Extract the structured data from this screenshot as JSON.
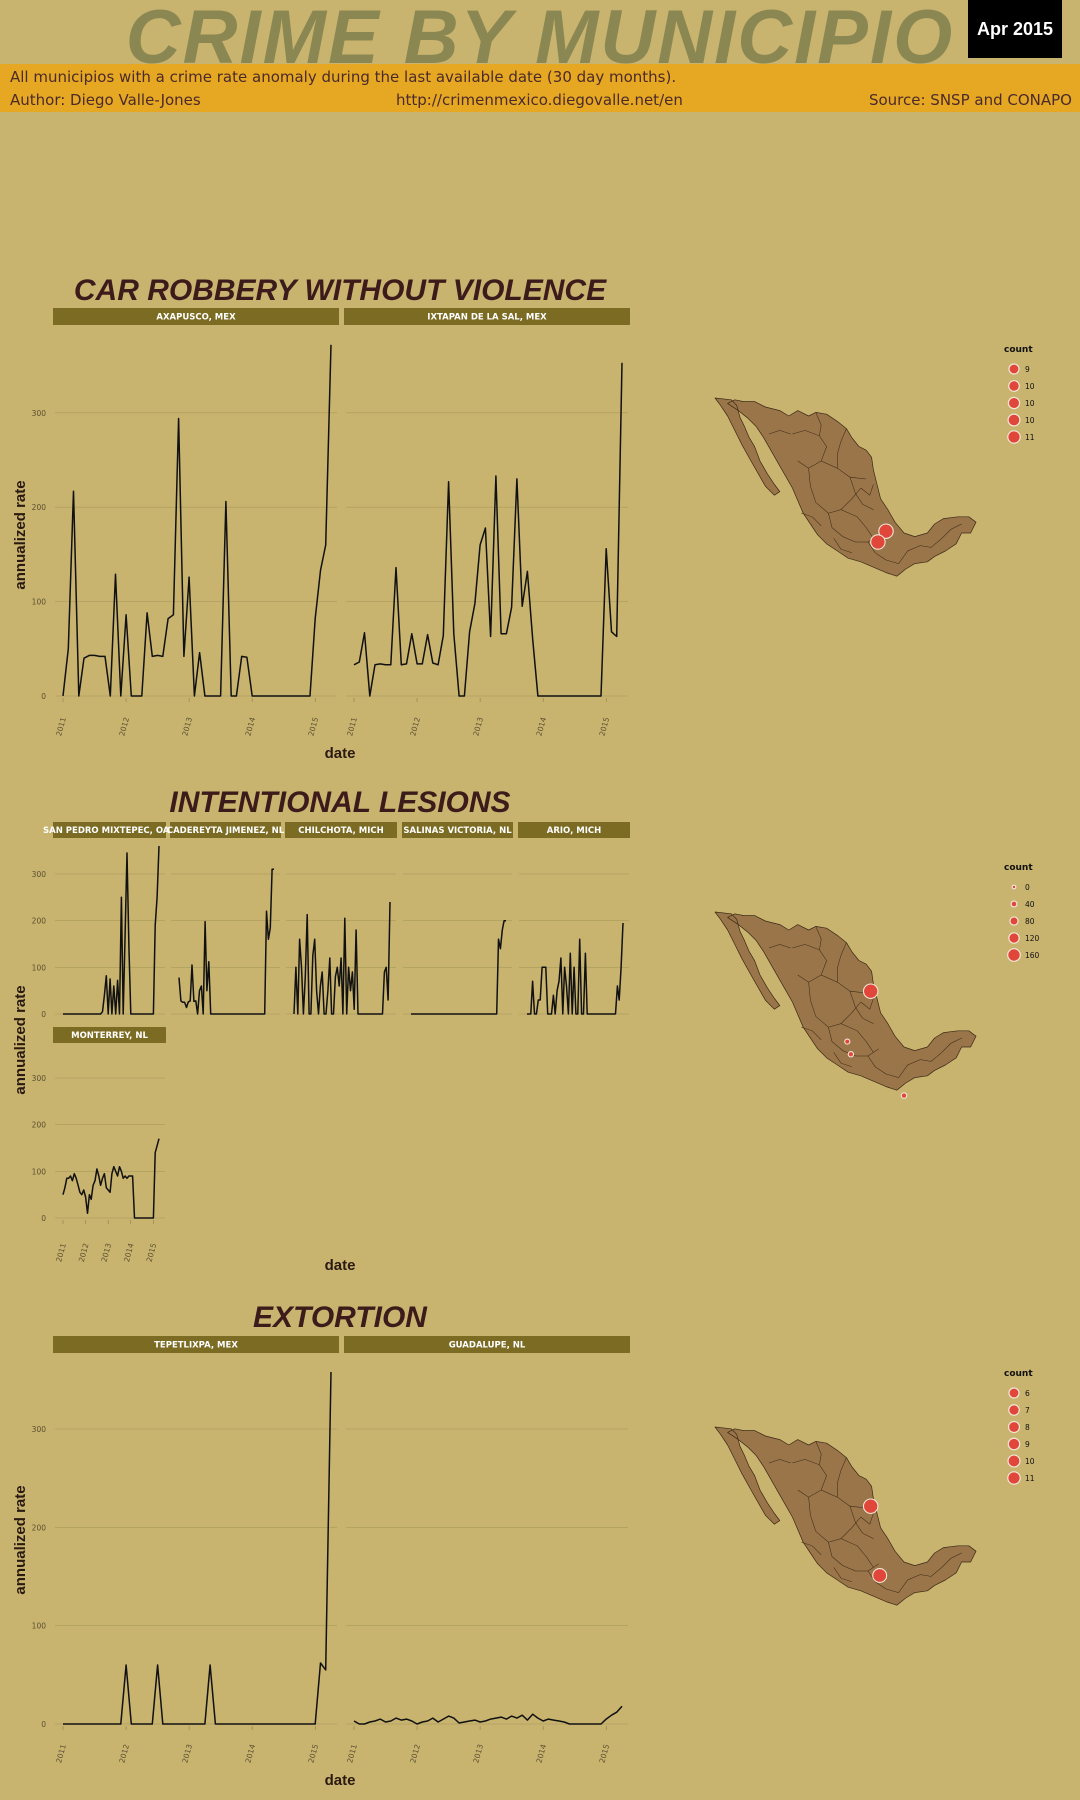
{
  "header": {
    "title": "CRIME BY MUNICIPIO",
    "date_badge": "Apr 2015",
    "subtitle": "All municipios with a crime rate anomaly during the last available date (30 day months).",
    "author": "Author: Diego Valle-Jones",
    "url": "http://crimenmexico.diegovalle.net/en",
    "source": "Source: SNSP and CONAPO"
  },
  "colors": {
    "background": "#c8b36f",
    "banner": "#e6a823",
    "title": "#8b8752",
    "strip": "#7c6b22",
    "section_title": "#3e1b1b",
    "bubble": "#e0463a",
    "map_land": "#9a7549"
  },
  "chart_data": [
    {
      "type": "line",
      "title": "CAR ROBBERY WITHOUT VIOLENCE",
      "xlabel": "date",
      "ylabel": "annualized rate",
      "x_ticks": [
        "2011",
        "2012",
        "2013",
        "2014",
        "2015"
      ],
      "y_ticks": [
        0,
        100,
        200,
        300
      ],
      "ylim": [
        0,
        375
      ],
      "x_start": "2011-01",
      "x_end": "2015-04",
      "series": [
        {
          "name": "AXAPUSCO, MEX",
          "values": [
            0,
            50,
            217,
            0,
            40,
            43,
            43,
            42,
            42,
            0,
            129,
            0,
            86,
            0,
            0,
            0,
            88,
            42,
            43,
            42,
            82,
            86,
            294,
            42,
            126,
            0,
            46,
            0,
            0,
            0,
            0,
            206,
            0,
            0,
            42,
            41,
            0,
            0,
            0,
            0,
            0,
            0,
            0,
            0,
            0,
            0,
            0,
            0,
            82,
            133,
            160,
            372
          ]
        },
        {
          "name": "IXTAPAN DE LA SAL, MEX",
          "values": [
            33,
            36,
            67,
            0,
            33,
            34,
            33,
            33,
            136,
            33,
            34,
            66,
            34,
            34,
            65,
            35,
            33,
            64,
            227,
            66,
            0,
            0,
            68,
            98,
            160,
            178,
            63,
            233,
            66,
            66,
            94,
            230,
            95,
            132,
            60,
            0,
            0,
            0,
            0,
            0,
            0,
            0,
            0,
            0,
            0,
            0,
            0,
            0,
            156,
            68,
            63,
            353
          ]
        }
      ],
      "legend": {
        "title": "count",
        "entries": [
          "9",
          "10",
          "10",
          "10",
          "11"
        ]
      },
      "map_points": [
        {
          "municipio": "AXAPUSCO, MEX",
          "count": 11
        },
        {
          "municipio": "IXTAPAN DE LA SAL, MEX",
          "count": 11
        }
      ]
    },
    {
      "type": "line",
      "title": "INTENTIONAL LESIONS",
      "xlabel": "date",
      "ylabel": "annualized rate",
      "x_ticks": [
        "2011",
        "2012",
        "2013",
        "2014",
        "2015"
      ],
      "y_ticks": [
        0,
        100,
        200,
        300
      ],
      "ylim": [
        0,
        360
      ],
      "x_start": "2011-01",
      "x_end": "2015-04",
      "series": [
        {
          "name": "SAN PEDRO MIXTEPEC, OAX",
          "values": [
            0,
            0,
            0,
            0,
            0,
            0,
            0,
            0,
            0,
            0,
            0,
            0,
            0,
            0,
            0,
            0,
            0,
            0,
            0,
            0,
            0,
            5,
            40,
            82,
            0,
            75,
            0,
            60,
            0,
            72,
            0,
            250,
            0,
            170,
            345,
            145,
            0,
            0,
            0,
            0,
            0,
            0,
            0,
            0,
            0,
            0,
            0,
            0,
            0,
            190,
            250,
            360
          ]
        },
        {
          "name": "CADEREYTA JIMENEZ, NL",
          "values": [
            78,
            28,
            25,
            25,
            14,
            26,
            28,
            105,
            27,
            28,
            0,
            50,
            60,
            0,
            198,
            50,
            112,
            0,
            0,
            0,
            0,
            0,
            0,
            0,
            0,
            0,
            0,
            0,
            0,
            0,
            0,
            0,
            0,
            0,
            0,
            0,
            0,
            0,
            0,
            0,
            0,
            0,
            0,
            0,
            0,
            0,
            0,
            220,
            160,
            185,
            310,
            310
          ]
        },
        {
          "name": "CHILCHOTA, MICH",
          "values": [
            0,
            100,
            0,
            160,
            100,
            0,
            80,
            213,
            0,
            0,
            125,
            160,
            50,
            0,
            60,
            90,
            0,
            0,
            50,
            120,
            0,
            0,
            80,
            100,
            60,
            120,
            0,
            205,
            0,
            100,
            50,
            90,
            10,
            180,
            0,
            0,
            0,
            0,
            0,
            0,
            0,
            0,
            0,
            0,
            0,
            0,
            0,
            0,
            90,
            100,
            30,
            240
          ]
        },
        {
          "name": "SALINAS VICTORIA, NL",
          "values": [
            0,
            0,
            0,
            0,
            0,
            0,
            0,
            0,
            0,
            0,
            0,
            0,
            0,
            0,
            0,
            0,
            0,
            0,
            0,
            0,
            0,
            0,
            0,
            0,
            0,
            0,
            0,
            0,
            0,
            0,
            0,
            0,
            0,
            0,
            0,
            0,
            0,
            0,
            0,
            0,
            0,
            0,
            0,
            0,
            0,
            0,
            0,
            160,
            140,
            180,
            200,
            200
          ]
        },
        {
          "name": "ARIO, MICH",
          "values": [
            0,
            0,
            0,
            70,
            0,
            0,
            30,
            30,
            100,
            100,
            100,
            0,
            0,
            0,
            40,
            0,
            50,
            70,
            120,
            0,
            100,
            60,
            0,
            130,
            0,
            100,
            0,
            0,
            160,
            0,
            0,
            130,
            0,
            0,
            0,
            0,
            0,
            0,
            0,
            0,
            0,
            0,
            0,
            0,
            0,
            0,
            0,
            0,
            60,
            30,
            100,
            195
          ]
        },
        {
          "name": "MONTERREY, NL",
          "values": [
            50,
            65,
            85,
            85,
            90,
            80,
            95,
            85,
            70,
            55,
            50,
            60,
            45,
            10,
            50,
            40,
            70,
            80,
            105,
            90,
            70,
            85,
            95,
            65,
            60,
            55,
            95,
            110,
            100,
            90,
            110,
            100,
            85,
            90,
            85,
            90,
            90,
            90,
            0,
            0,
            0,
            0,
            0,
            0,
            0,
            0,
            0,
            0,
            0,
            140,
            155,
            170
          ]
        }
      ],
      "legend": {
        "title": "count",
        "entries": [
          "0",
          "40",
          "80",
          "120",
          "160"
        ]
      },
      "map_points": [
        {
          "municipio": "MONTERREY, NL",
          "count": 160
        },
        {
          "municipio": "SAN PEDRO MIXTEPEC, OAX",
          "count": 5
        }
      ]
    },
    {
      "type": "line",
      "title": "EXTORTION",
      "xlabel": "date",
      "ylabel": "annualized rate",
      "x_ticks": [
        "2011",
        "2012",
        "2013",
        "2014",
        "2015"
      ],
      "y_ticks": [
        0,
        100,
        200,
        300
      ],
      "ylim": [
        0,
        360
      ],
      "x_start": "2011-01",
      "x_end": "2015-04",
      "series": [
        {
          "name": "TEPETLIXPA, MEX",
          "values": [
            0,
            0,
            0,
            0,
            0,
            0,
            0,
            0,
            0,
            0,
            0,
            0,
            60,
            0,
            0,
            0,
            0,
            0,
            60,
            0,
            0,
            0,
            0,
            0,
            0,
            0,
            0,
            0,
            60,
            0,
            0,
            0,
            0,
            0,
            0,
            0,
            0,
            0,
            0,
            0,
            0,
            0,
            0,
            0,
            0,
            0,
            0,
            0,
            0,
            62,
            55,
            358
          ]
        },
        {
          "name": "GUADALUPE, NL",
          "values": [
            3,
            0,
            0,
            2,
            3,
            5,
            2,
            3,
            6,
            4,
            5,
            3,
            0,
            2,
            3,
            6,
            2,
            5,
            8,
            6,
            1,
            2,
            3,
            4,
            2,
            3,
            5,
            6,
            7,
            5,
            8,
            6,
            9,
            4,
            10,
            6,
            3,
            5,
            4,
            3,
            2,
            0,
            0,
            0,
            0,
            0,
            0,
            0,
            5,
            9,
            12,
            18
          ]
        }
      ],
      "legend": {
        "title": "count",
        "entries": [
          "6",
          "7",
          "8",
          "9",
          "10",
          "11"
        ]
      },
      "map_points": [
        {
          "municipio": "GUADALUPE, NL",
          "count": 11
        },
        {
          "municipio": "TEPETLIXPA, MEX",
          "count": 10
        }
      ]
    }
  ]
}
